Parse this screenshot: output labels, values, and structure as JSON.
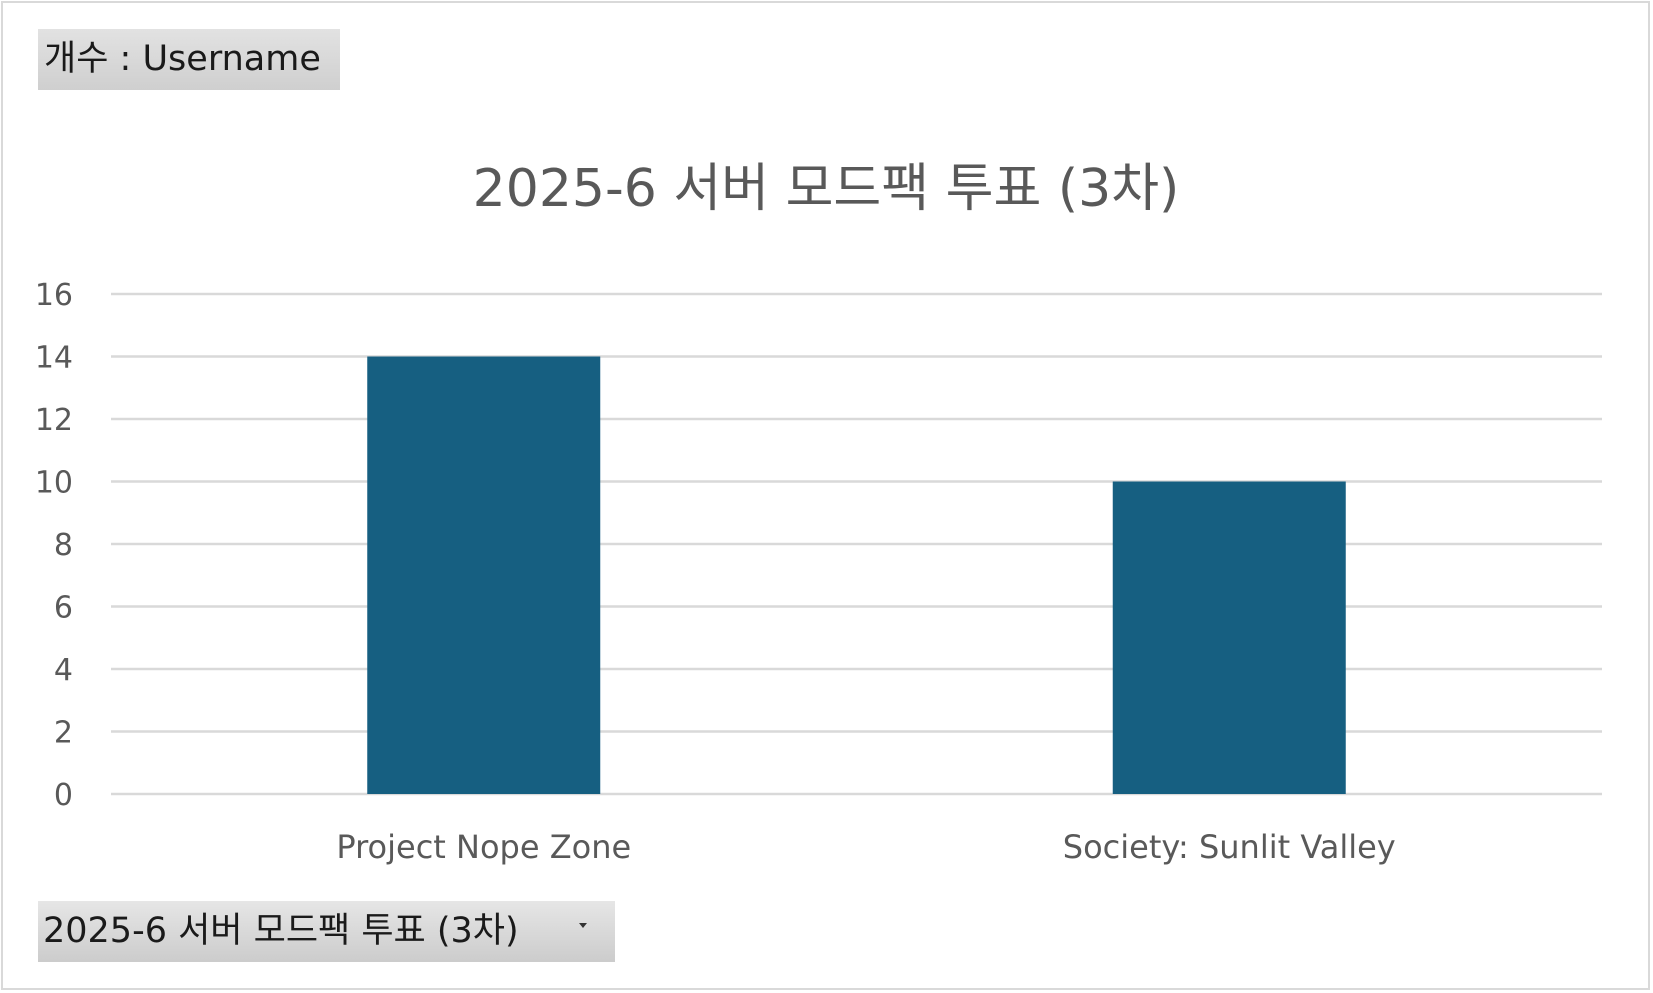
{
  "value_field": {
    "label": "개수 : Username"
  },
  "filter_field": {
    "label": "2025-6 서버 모드팩 투표 (3차)",
    "icon": "chevron-down-icon"
  },
  "chart_data": {
    "type": "bar",
    "title": "2025-6 서버 모드팩 투표 (3차)",
    "categories": [
      "Project Nope Zone",
      "Society: Sunlit Valley"
    ],
    "series": [
      {
        "values": [
          14,
          10
        ],
        "color": "#165f81"
      }
    ],
    "ylim": [
      0,
      16
    ],
    "ytick_step": 2,
    "yticks": [
      "0",
      "2",
      "4",
      "6",
      "8",
      "10",
      "12",
      "14",
      "16"
    ],
    "grid": true,
    "legend": "none",
    "xlabel": "",
    "ylabel": "",
    "colors": {
      "bar": "#165f81",
      "grid": "#d9d9d9",
      "text": "#595959"
    }
  }
}
